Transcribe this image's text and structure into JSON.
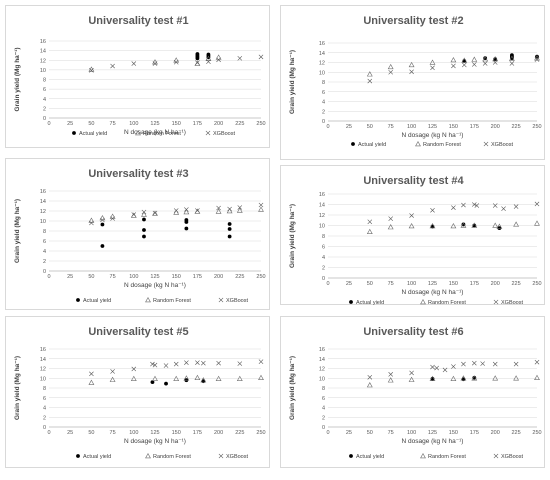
{
  "colors": {
    "actual": "#000000",
    "rf": "#6b6b6b",
    "xgb": "#555555",
    "grid": "#d9d9d9",
    "axis": "#bfbfbf"
  },
  "chart_data": [
    {
      "type": "scatter",
      "title": "Universality test #1",
      "xlabel": "N dosage (kg N ha⁻¹)",
      "ylabel": "Grain yield (Mg ha⁻¹)",
      "xlim": [
        0,
        250
      ],
      "ylim": [
        0,
        16
      ],
      "xticks": [
        "0",
        "25",
        "50",
        "75",
        "100",
        "125",
        "150",
        "175",
        "200",
        "225",
        "250"
      ],
      "yticks": [
        "0",
        "2",
        "4",
        "6",
        "8",
        "10",
        "12",
        "14",
        "16"
      ],
      "legend": [
        "Actual yield",
        "Random Forest",
        "XGBoost"
      ],
      "series": [
        {
          "name": "Actual yield",
          "marker": "dot",
          "points": [
            [
              175,
              13.3
            ],
            [
              175,
              13.0
            ],
            [
              175,
              12.7
            ],
            [
              175,
              12.4
            ],
            [
              188,
              13.2
            ],
            [
              188,
              12.9
            ],
            [
              188,
              12.6
            ]
          ]
        },
        {
          "name": "Random Forest",
          "marker": "triangle",
          "points": [
            [
              50,
              10.1
            ],
            [
              125,
              11.6
            ],
            [
              150,
              12.0
            ],
            [
              175,
              11.3
            ],
            [
              188,
              12.3
            ],
            [
              200,
              12.6
            ]
          ]
        },
        {
          "name": "XGBoost",
          "marker": "x",
          "points": [
            [
              50,
              9.9
            ],
            [
              75,
              10.8
            ],
            [
              100,
              11.3
            ],
            [
              125,
              11.3
            ],
            [
              150,
              11.6
            ],
            [
              175,
              11.5
            ],
            [
              188,
              11.7
            ],
            [
              200,
              12.1
            ],
            [
              225,
              12.4
            ],
            [
              250,
              12.7
            ]
          ]
        }
      ]
    },
    {
      "type": "scatter",
      "title": "Universality test #2",
      "xlabel": "N dosage (kg N ha⁻¹)",
      "ylabel": "Grain yield (Mg ha⁻¹)",
      "xlim": [
        0,
        250
      ],
      "ylim": [
        0,
        16
      ],
      "xticks": [
        "0",
        "25",
        "50",
        "75",
        "100",
        "125",
        "150",
        "175",
        "200",
        "225",
        "250"
      ],
      "yticks": [
        "0",
        "2",
        "4",
        "6",
        "8",
        "10",
        "12",
        "14",
        "16"
      ],
      "legend": [
        "Actual yield",
        "Random Forest",
        "XGBoost"
      ],
      "series": [
        {
          "name": "Actual yield",
          "marker": "dot",
          "points": [
            [
              163,
              12.3
            ],
            [
              188,
              12.9
            ],
            [
              200,
              12.7
            ],
            [
              220,
              13.5
            ],
            [
              220,
              13.2
            ],
            [
              220,
              12.9
            ],
            [
              250,
              13.2
            ]
          ]
        },
        {
          "name": "Random Forest",
          "marker": "triangle",
          "points": [
            [
              50,
              9.6
            ],
            [
              75,
              11.1
            ],
            [
              100,
              11.5
            ],
            [
              125,
              12.0
            ],
            [
              150,
              12.5
            ],
            [
              163,
              12.4
            ],
            [
              175,
              12.6
            ],
            [
              188,
              12.7
            ],
            [
              200,
              12.7
            ],
            [
              220,
              12.8
            ],
            [
              250,
              12.9
            ]
          ]
        },
        {
          "name": "XGBoost",
          "marker": "x",
          "points": [
            [
              50,
              8.2
            ],
            [
              75,
              10.0
            ],
            [
              100,
              10.1
            ],
            [
              125,
              10.9
            ],
            [
              150,
              11.3
            ],
            [
              163,
              11.5
            ],
            [
              175,
              11.6
            ],
            [
              188,
              11.8
            ],
            [
              200,
              12.0
            ],
            [
              220,
              11.8
            ],
            [
              250,
              12.6
            ]
          ]
        }
      ]
    },
    {
      "type": "scatter",
      "title": "Universality test #3",
      "xlabel": "N dosage (kg N ha⁻¹)",
      "ylabel": "Grain yield (Mg ha⁻¹)",
      "xlim": [
        0,
        250
      ],
      "ylim": [
        0,
        16
      ],
      "xticks": [
        "0",
        "25",
        "50",
        "75",
        "100",
        "125",
        "150",
        "175",
        "200",
        "225",
        "250"
      ],
      "yticks": [
        "0",
        "2",
        "4",
        "6",
        "8",
        "10",
        "12",
        "14",
        "16"
      ],
      "legend": [
        "Actual yield",
        "Random Forest",
        "XGBoost"
      ],
      "series": [
        {
          "name": "Actual yield",
          "marker": "dot",
          "points": [
            [
              63,
              5.0
            ],
            [
              63,
              9.3
            ],
            [
              112,
              6.9
            ],
            [
              112,
              8.2
            ],
            [
              112,
              10.3
            ],
            [
              162,
              8.5
            ],
            [
              162,
              9.8
            ],
            [
              162,
              10.2
            ],
            [
              213,
              6.9
            ],
            [
              213,
              8.4
            ],
            [
              213,
              9.4
            ]
          ]
        },
        {
          "name": "Random Forest",
          "marker": "triangle",
          "points": [
            [
              50,
              10.1
            ],
            [
              63,
              10.6
            ],
            [
              75,
              10.9
            ],
            [
              100,
              11.1
            ],
            [
              112,
              11.3
            ],
            [
              125,
              11.5
            ],
            [
              150,
              11.7
            ],
            [
              162,
              11.8
            ],
            [
              175,
              11.9
            ],
            [
              200,
              11.9
            ],
            [
              213,
              12.0
            ],
            [
              225,
              12.1
            ],
            [
              250,
              12.3
            ]
          ]
        },
        {
          "name": "XGBoost",
          "marker": "x",
          "points": [
            [
              50,
              9.6
            ],
            [
              63,
              10.2
            ],
            [
              75,
              10.5
            ],
            [
              100,
              11.3
            ],
            [
              112,
              11.8
            ],
            [
              125,
              11.6
            ],
            [
              150,
              12.1
            ],
            [
              162,
              12.3
            ],
            [
              175,
              12.1
            ],
            [
              200,
              12.6
            ],
            [
              213,
              12.4
            ],
            [
              225,
              12.7
            ],
            [
              250,
              13.2
            ]
          ]
        }
      ]
    },
    {
      "type": "scatter",
      "title": "Universality test #4",
      "xlabel": "N dosage (kg N ha⁻¹)",
      "ylabel": "Grain yield (Mg ha⁻¹)",
      "xlim": [
        0,
        250
      ],
      "ylim": [
        0,
        16
      ],
      "xticks": [
        "0",
        "25",
        "50",
        "75",
        "100",
        "125",
        "150",
        "175",
        "200",
        "225",
        "250"
      ],
      "yticks": [
        "0",
        "2",
        "4",
        "6",
        "8",
        "10",
        "12",
        "14",
        "16"
      ],
      "legend": [
        "Actual yield",
        "Random Forest",
        "XGBoost"
      ],
      "series": [
        {
          "name": "Actual yield",
          "marker": "dot",
          "points": [
            [
              125,
              9.8
            ],
            [
              162,
              10.2
            ],
            [
              175,
              10.0
            ],
            [
              205,
              9.5
            ]
          ]
        },
        {
          "name": "Random Forest",
          "marker": "triangle",
          "points": [
            [
              50,
              8.8
            ],
            [
              75,
              9.7
            ],
            [
              100,
              9.9
            ],
            [
              125,
              9.9
            ],
            [
              150,
              9.9
            ],
            [
              162,
              10.0
            ],
            [
              175,
              10.0
            ],
            [
              200,
              10.0
            ],
            [
              205,
              9.8
            ],
            [
              225,
              10.2
            ],
            [
              250,
              10.4
            ]
          ]
        },
        {
          "name": "XGBoost",
          "marker": "x",
          "points": [
            [
              50,
              10.7
            ],
            [
              75,
              11.3
            ],
            [
              100,
              11.9
            ],
            [
              125,
              12.9
            ],
            [
              150,
              13.4
            ],
            [
              162,
              13.9
            ],
            [
              175,
              14.0
            ],
            [
              178,
              13.8
            ],
            [
              200,
              13.8
            ],
            [
              210,
              13.2
            ],
            [
              225,
              13.6
            ],
            [
              250,
              14.1
            ]
          ]
        }
      ]
    },
    {
      "type": "scatter",
      "title": "Universality test #5",
      "xlabel": "N dosage (kg N ha⁻¹)",
      "ylabel": "Grain yield (Mg ha⁻¹)",
      "xlim": [
        0,
        250
      ],
      "ylim": [
        0,
        16
      ],
      "xticks": [
        "0",
        "25",
        "50",
        "75",
        "100",
        "125",
        "150",
        "175",
        "200",
        "225",
        "250"
      ],
      "yticks": [
        "0",
        "2",
        "4",
        "6",
        "8",
        "10",
        "12",
        "14",
        "16"
      ],
      "legend": [
        "Actual yield",
        "Random Forest",
        "XGBoost"
      ],
      "series": [
        {
          "name": "Actual yield",
          "marker": "dot",
          "points": [
            [
              122,
              9.2
            ],
            [
              138,
              8.9
            ],
            [
              162,
              9.6
            ],
            [
              182,
              9.4
            ]
          ]
        },
        {
          "name": "Random Forest",
          "marker": "triangle",
          "points": [
            [
              50,
              9.1
            ],
            [
              75,
              9.7
            ],
            [
              100,
              9.9
            ],
            [
              125,
              9.9
            ],
            [
              150,
              9.9
            ],
            [
              162,
              10.0
            ],
            [
              175,
              10.1
            ],
            [
              182,
              9.6
            ],
            [
              200,
              9.9
            ],
            [
              225,
              9.9
            ],
            [
              250,
              10.1
            ]
          ]
        },
        {
          "name": "XGBoost",
          "marker": "x",
          "points": [
            [
              50,
              10.9
            ],
            [
              75,
              11.4
            ],
            [
              100,
              11.9
            ],
            [
              122,
              12.9
            ],
            [
              125,
              12.7
            ],
            [
              138,
              12.6
            ],
            [
              150,
              12.9
            ],
            [
              162,
              13.2
            ],
            [
              175,
              13.2
            ],
            [
              182,
              13.1
            ],
            [
              200,
              13.1
            ],
            [
              225,
              13.0
            ],
            [
              250,
              13.4
            ]
          ]
        }
      ]
    },
    {
      "type": "scatter",
      "title": "Universality test #6",
      "xlabel": "N dosage (kg N ha⁻¹)",
      "ylabel": "Grain yield (Mg ha⁻¹)",
      "xlim": [
        0,
        250
      ],
      "ylim": [
        0,
        16
      ],
      "xticks": [
        "0",
        "25",
        "50",
        "75",
        "100",
        "125",
        "150",
        "175",
        "200",
        "225",
        "250"
      ],
      "yticks": [
        "0",
        "2",
        "4",
        "6",
        "8",
        "10",
        "12",
        "14",
        "16"
      ],
      "legend": [
        "Actual yield",
        "Random Forest",
        "XGBoost"
      ],
      "series": [
        {
          "name": "Actual yield",
          "marker": "dot",
          "points": [
            [
              125,
              9.9
            ],
            [
              162,
              9.8
            ],
            [
              175,
              10.1
            ]
          ]
        },
        {
          "name": "Random Forest",
          "marker": "triangle",
          "points": [
            [
              50,
              8.6
            ],
            [
              75,
              9.6
            ],
            [
              100,
              9.7
            ],
            [
              125,
              9.9
            ],
            [
              150,
              9.9
            ],
            [
              162,
              10.0
            ],
            [
              175,
              10.0
            ],
            [
              200,
              10.0
            ],
            [
              225,
              10.0
            ],
            [
              250,
              10.1
            ]
          ]
        },
        {
          "name": "XGBoost",
          "marker": "x",
          "points": [
            [
              50,
              10.2
            ],
            [
              75,
              10.8
            ],
            [
              100,
              11.1
            ],
            [
              125,
              12.3
            ],
            [
              130,
              12.1
            ],
            [
              140,
              11.7
            ],
            [
              150,
              12.4
            ],
            [
              162,
              12.9
            ],
            [
              175,
              13.1
            ],
            [
              185,
              13.0
            ],
            [
              200,
              12.9
            ],
            [
              225,
              12.9
            ],
            [
              250,
              13.3
            ]
          ]
        }
      ]
    }
  ]
}
